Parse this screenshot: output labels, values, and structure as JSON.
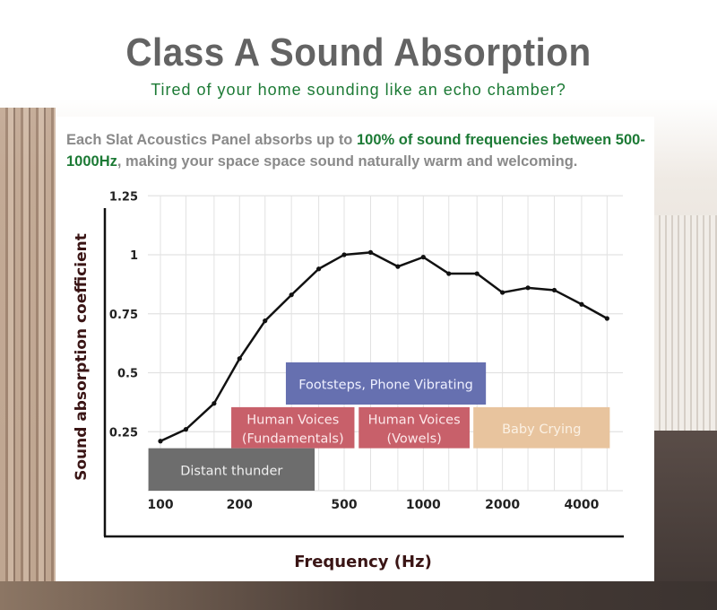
{
  "header": {
    "title": "Class A Sound Absorption",
    "subtitle": "Tired of your home sounding like an echo chamber?",
    "desc_part1": "Each Slat Acoustics Panel absorbs up to ",
    "desc_highlight1": "100% of sound frequencies between 500-1000Hz",
    "desc_part2": ", making  your space space sound naturally warm and welcoming."
  },
  "colors": {
    "accent_green": "#1c7a35",
    "title_gray": "#636363",
    "line": "#111111",
    "axis_label": "#3a1515"
  },
  "chart_data": {
    "type": "line",
    "title": "",
    "xlabel": "Frequency (Hz)",
    "ylabel": "Sound absorption coefficient",
    "xscale": "log",
    "x": [
      100,
      125,
      160,
      200,
      250,
      315,
      400,
      500,
      630,
      800,
      1000,
      1250,
      1600,
      2000,
      2500,
      3150,
      4000,
      5000
    ],
    "series": [
      {
        "name": "Slat Acoustics Panel",
        "values": [
          0.21,
          0.26,
          0.37,
          0.56,
          0.72,
          0.83,
          0.94,
          1.0,
          1.01,
          0.95,
          0.99,
          0.92,
          0.92,
          0.84,
          0.86,
          0.85,
          0.79,
          0.73
        ]
      }
    ],
    "xticks": [
      {
        "value": 100,
        "label": "100"
      },
      {
        "value": 200,
        "label": "200"
      },
      {
        "value": 500,
        "label": "500"
      },
      {
        "value": 1000,
        "label": "1000"
      },
      {
        "value": 2000,
        "label": "2000"
      },
      {
        "value": 4000,
        "label": "4000"
      }
    ],
    "yticks": [
      {
        "value": 0.25,
        "label": "0.25"
      },
      {
        "value": 0.5,
        "label": "0.5"
      },
      {
        "value": 0.75,
        "label": "0.75"
      },
      {
        "value": 1,
        "label": "1"
      },
      {
        "value": 1.25,
        "label": "1.25"
      }
    ],
    "ylim": [
      0,
      1.25
    ],
    "xlim": [
      100,
      5000
    ],
    "grid": true,
    "bands": [
      {
        "lines": [
          "Footsteps, Phone Vibrating"
        ],
        "f_range": [
          300,
          1730
        ],
        "y_range": [
          0.365,
          0.544
        ],
        "color": "#6670b0",
        "text_color": "#eef0ff"
      },
      {
        "lines": [
          "Human Voices",
          "(Fundamentals)"
        ],
        "f_range": [
          186,
          547
        ],
        "y_range": [
          0.18,
          0.354
        ],
        "color": "#c8606a",
        "text_color": "#fde8ea"
      },
      {
        "lines": [
          "Human Voices",
          "(Vowels)"
        ],
        "f_range": [
          568,
          1500
        ],
        "y_range": [
          0.18,
          0.354
        ],
        "color": "#c8606a",
        "text_color": "#fde8ea"
      },
      {
        "lines": [
          "Baby Crying"
        ],
        "f_range": [
          1550,
          5120
        ],
        "y_range": [
          0.18,
          0.354
        ],
        "color": "#e8c49e",
        "text_color": "#fbf1e4"
      },
      {
        "lines": [
          "Distant thunder"
        ],
        "f_range": [
          90,
          386
        ],
        "y_range": [
          0,
          0.18
        ],
        "color": "#6d6d6d",
        "text_color": "#f0f0f0"
      }
    ]
  }
}
